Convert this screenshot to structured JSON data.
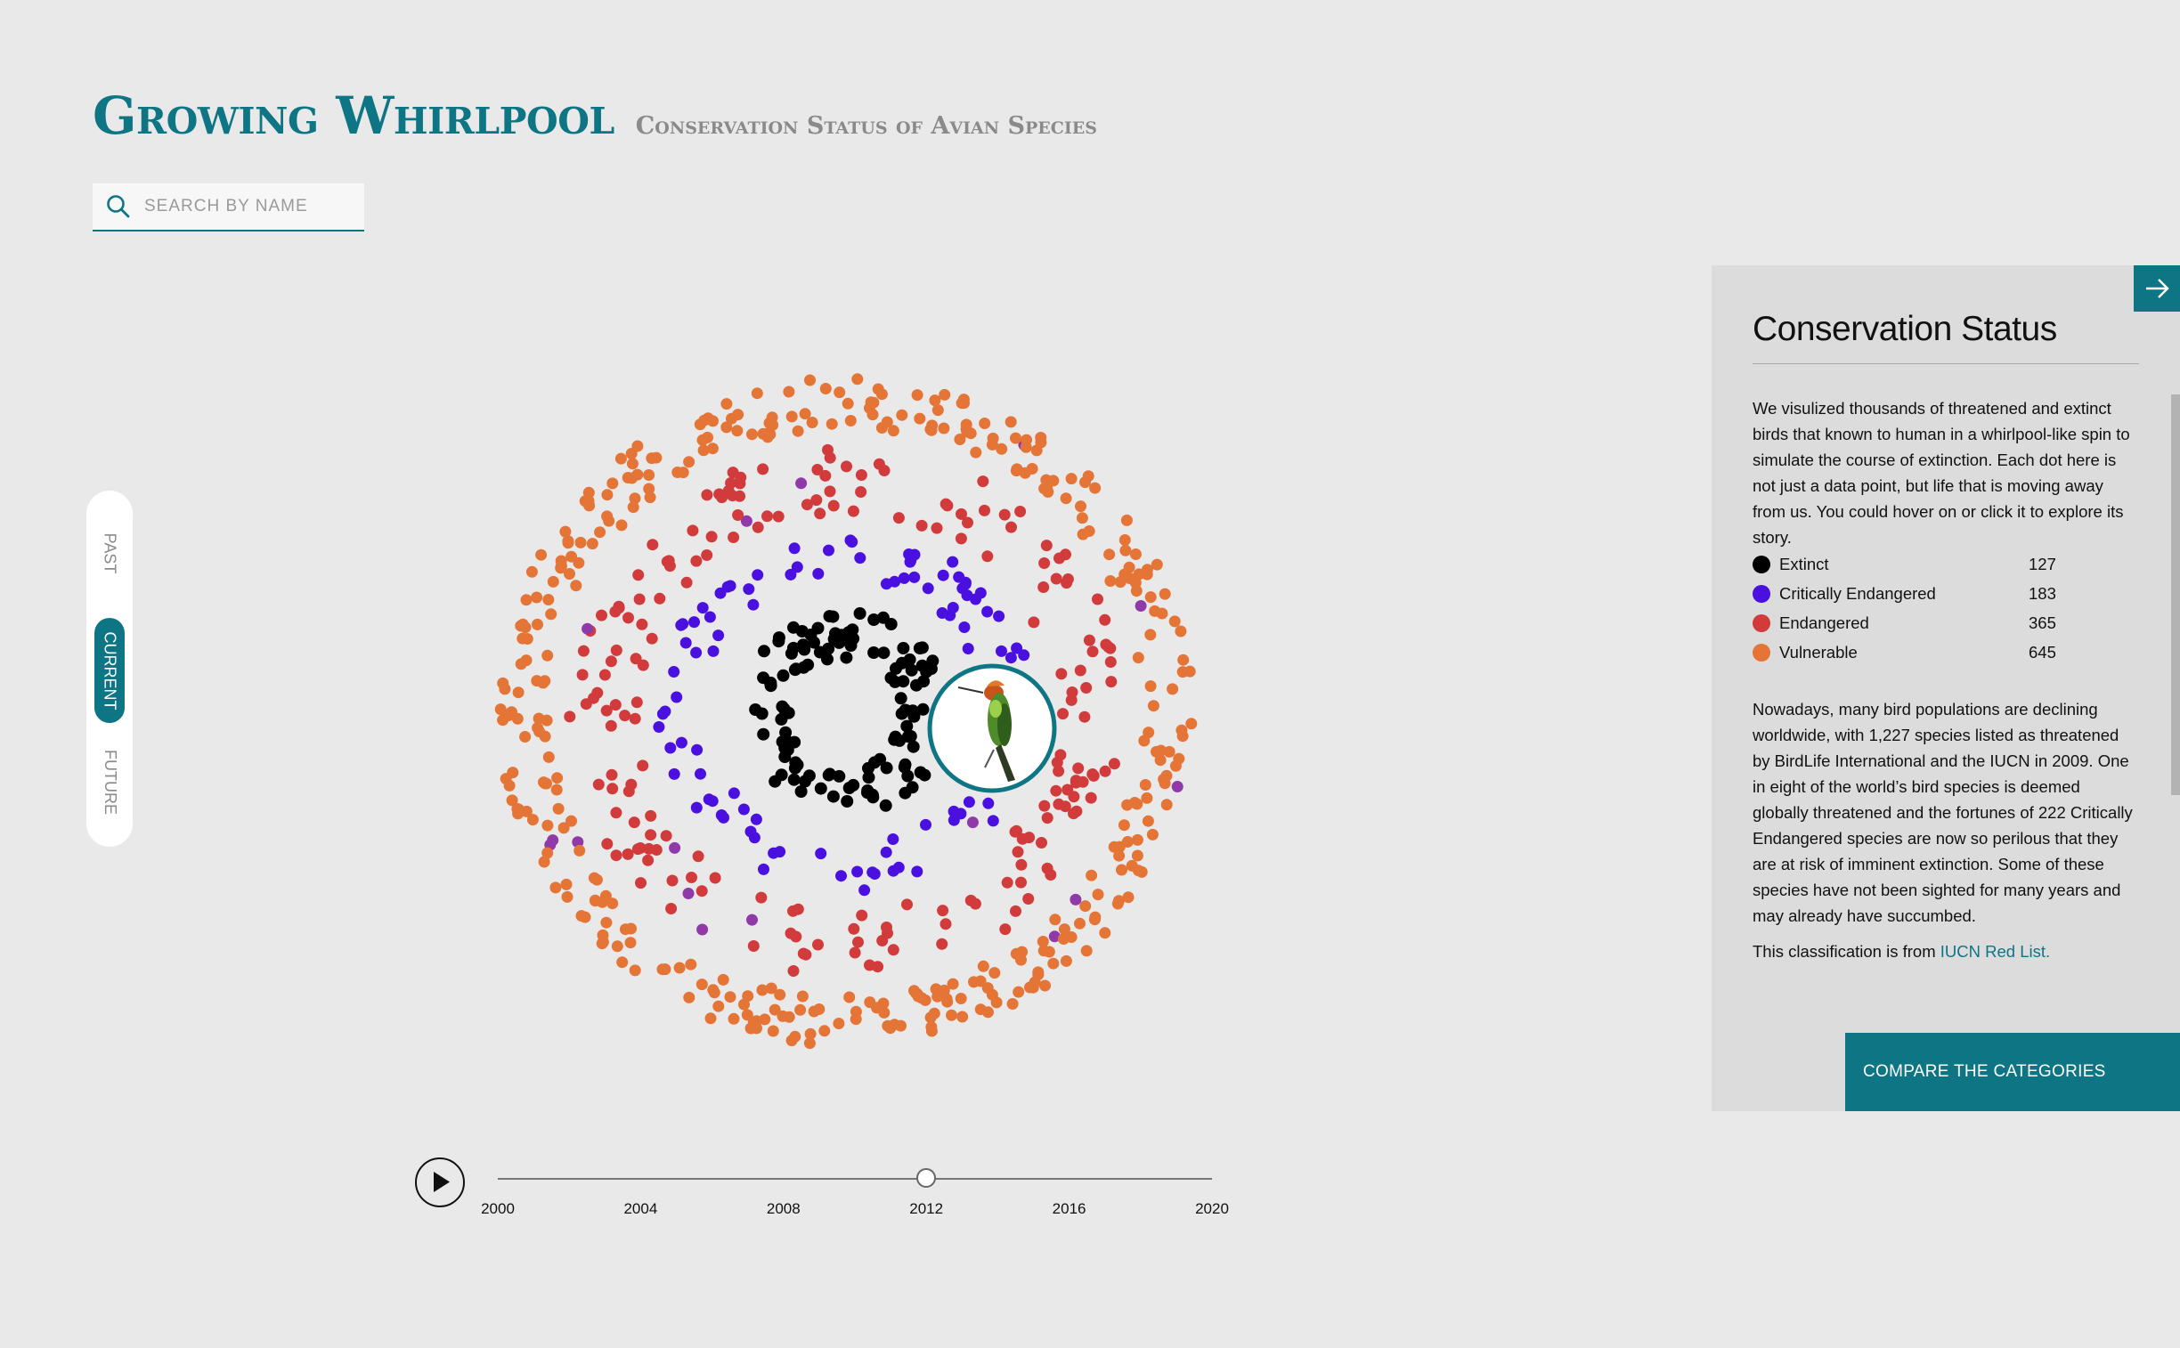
{
  "header": {
    "title": "Growing Whirlpool",
    "subtitle": "Conservation Status of Avian Species"
  },
  "search": {
    "placeholder": "SEARCH BY NAME",
    "icon": "search-icon"
  },
  "time_nav": {
    "options": [
      "PAST",
      "CURRENT",
      "FUTURE"
    ],
    "selected": "CURRENT"
  },
  "timeline": {
    "ticks": [
      "2000",
      "2004",
      "2008",
      "2012",
      "2016",
      "2020"
    ],
    "min_year": 2000,
    "max_year": 2020,
    "current_year": 2012
  },
  "colors": {
    "accent": "#0e7585",
    "extinct": "#000000",
    "critically_endangered": "#4a10e0",
    "endangered": "#d23b3b",
    "vulnerable": "#e57437",
    "transition": "#8f3aa8"
  },
  "chart_data": {
    "type": "scatter",
    "categories": [
      "Extinct",
      "Critically Endangered",
      "Endangered",
      "Vulnerable"
    ],
    "counts": [
      127,
      183,
      365,
      645
    ],
    "highlight_icon": "hummingbird-icon"
  },
  "panel": {
    "title": "Conservation Status",
    "intro": "We visulized thousands of threatened and extinct birds that known to human in a whirlpool-like spin to simulate the course of extinction. Each dot here is not just a data point, but life that is moving away from us. You could hover on or click it to explore its story.",
    "legend": [
      {
        "label": "Extinct",
        "count": "127",
        "color": "#000000"
      },
      {
        "label": "Critically Endangered",
        "count": "183",
        "color": "#4a10e0"
      },
      {
        "label": "Endangered",
        "count": "365",
        "color": "#d23b3b"
      },
      {
        "label": "Vulnerable",
        "count": "645",
        "color": "#e57437"
      }
    ],
    "body": "Nowadays, many bird populations are declining worldwide, with 1,227 species listed as threatened by BirdLife International and the IUCN in 2009. One in eight of the world’s bird species is deemed globally threatened and the fortunes of 222 Critically Endangered species are now so perilous that they are at risk of imminent extinction. Some of these species have not been sighted for many years and may already have succumbed.",
    "source_prefix": "This classification is from ",
    "source_link": "IUCN Red List.",
    "compare_label": "COMPARE THE CATEGORIES",
    "arrow_icon": "arrow-right-icon"
  }
}
